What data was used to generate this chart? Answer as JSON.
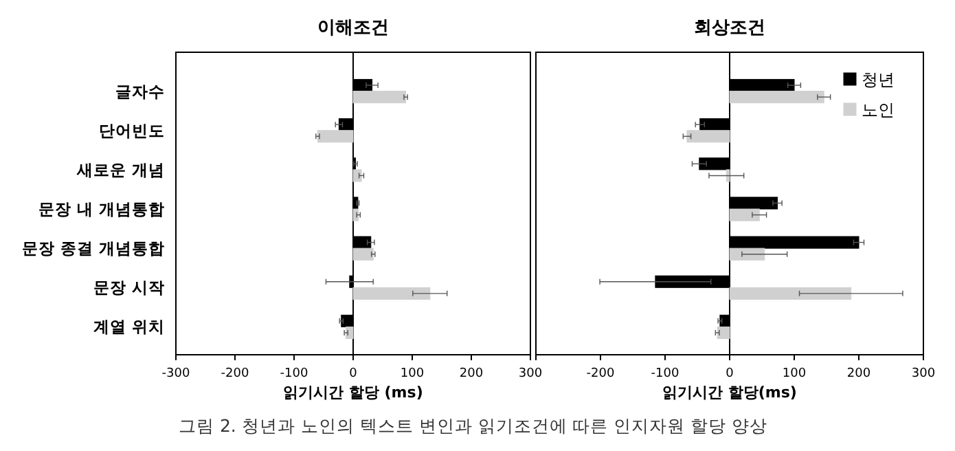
{
  "chart_data": [
    {
      "type": "bar",
      "orientation": "horizontal",
      "title": "이해조건",
      "xlabel": "읽기시간 할당 (ms)",
      "categories": [
        "글자수",
        "단어빈도",
        "새로운 개념",
        "문장 내 개념통합",
        "문장 종결 개념통합",
        "문장 시작",
        "계열 위치"
      ],
      "series": [
        {
          "color": "#000000",
          "values": [
            32,
            -24,
            4,
            8,
            30,
            -6,
            -20
          ],
          "errors": [
            10,
            6,
            3,
            2,
            6,
            40,
            3
          ]
        },
        {
          "color": "#d0d0d0",
          "values": [
            89,
            -60,
            14,
            9,
            34,
            130,
            -12
          ],
          "errors": [
            3,
            3,
            4,
            3,
            3,
            29,
            3
          ]
        }
      ],
      "xlim": [
        -300,
        300
      ],
      "xticks": [
        -300,
        -200,
        -100,
        0,
        100,
        200,
        300
      ],
      "legend": false
    },
    {
      "type": "bar",
      "orientation": "horizontal",
      "title": "회상조건",
      "xlabel": "읽기시간 할당(ms)",
      "categories": [
        null,
        null,
        null,
        null,
        null,
        null,
        null
      ],
      "series": [
        {
          "name": "청년",
          "color": "#000000",
          "values": [
            100,
            -46,
            -47,
            74,
            200,
            -115,
            -15
          ],
          "errors": [
            10,
            7,
            11,
            7,
            8,
            86,
            3
          ]
        },
        {
          "name": "노인",
          "color": "#d0d0d0",
          "values": [
            146,
            -66,
            -5,
            46,
            54,
            188,
            -19
          ],
          "errors": [
            10,
            6,
            27,
            11,
            35,
            80,
            3
          ]
        }
      ],
      "xlim": [
        -300,
        300
      ],
      "xticks": [
        {
          "value": -300,
          "label": null
        },
        -200,
        -100,
        0,
        100,
        200,
        300
      ],
      "tick_labels": "x",
      "legend": "top right",
      "annotations": [
        "그림 2. 청년과 노인의 텍스트 변인과 읽기조건에 따른 인지자원 할당 양상"
      ]
    }
  ]
}
